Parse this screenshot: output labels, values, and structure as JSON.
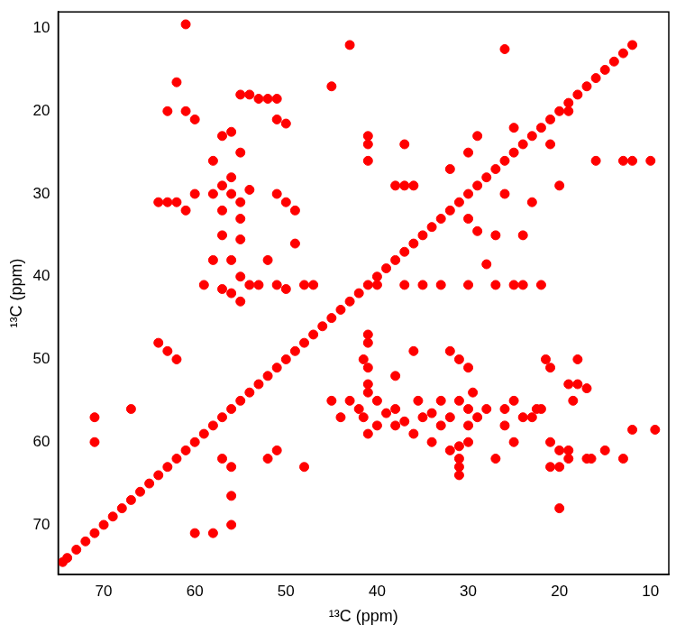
{
  "chart_data": {
    "type": "scatter",
    "x_label": "¹³C (ppm)",
    "y_label": "¹³C (ppm)",
    "xlim": [
      75,
      8
    ],
    "ylim": [
      8,
      76
    ],
    "xticks": [
      70,
      60,
      50,
      40,
      30,
      20,
      10
    ],
    "yticks": [
      10,
      20,
      30,
      40,
      50,
      60,
      70
    ],
    "grid": false,
    "color": "#ff0000",
    "marker": "circle",
    "points": [
      [
        74.5,
        74.5
      ],
      [
        74,
        74
      ],
      [
        73,
        73
      ],
      [
        72,
        72
      ],
      [
        71,
        71
      ],
      [
        70,
        70
      ],
      [
        69,
        69
      ],
      [
        68,
        68
      ],
      [
        67,
        67
      ],
      [
        66,
        66
      ],
      [
        65,
        65
      ],
      [
        64,
        64
      ],
      [
        63,
        63
      ],
      [
        62,
        62
      ],
      [
        61,
        61
      ],
      [
        60,
        60
      ],
      [
        59,
        59
      ],
      [
        58,
        58
      ],
      [
        57,
        57
      ],
      [
        56,
        56
      ],
      [
        55,
        55
      ],
      [
        54,
        54
      ],
      [
        53,
        53
      ],
      [
        52,
        52
      ],
      [
        51,
        51
      ],
      [
        50,
        50
      ],
      [
        49,
        49
      ],
      [
        48,
        48
      ],
      [
        47,
        47
      ],
      [
        46,
        46
      ],
      [
        45,
        45
      ],
      [
        44,
        44
      ],
      [
        43,
        43
      ],
      [
        42,
        42
      ],
      [
        41,
        41
      ],
      [
        40,
        40
      ],
      [
        39,
        39
      ],
      [
        38,
        38
      ],
      [
        37,
        37
      ],
      [
        36,
        36
      ],
      [
        35,
        35
      ],
      [
        34,
        34
      ],
      [
        33,
        33
      ],
      [
        32,
        32
      ],
      [
        31,
        31
      ],
      [
        30,
        30
      ],
      [
        29,
        29
      ],
      [
        28,
        28
      ],
      [
        27,
        27
      ],
      [
        26,
        26
      ],
      [
        25,
        25
      ],
      [
        24,
        24
      ],
      [
        23,
        23
      ],
      [
        22,
        22
      ],
      [
        21,
        21
      ],
      [
        20,
        20
      ],
      [
        19,
        19
      ],
      [
        18,
        18
      ],
      [
        17,
        17
      ],
      [
        16,
        16
      ],
      [
        15,
        15
      ],
      [
        14,
        14
      ],
      [
        13,
        13
      ],
      [
        12,
        12
      ],
      [
        53,
        18.5
      ],
      [
        52,
        18.5
      ],
      [
        54,
        18
      ],
      [
        51,
        18.5
      ],
      [
        55,
        18
      ],
      [
        56,
        30
      ],
      [
        55,
        31
      ],
      [
        57,
        29
      ],
      [
        58,
        30
      ],
      [
        54,
        29.5
      ],
      [
        56,
        28
      ],
      [
        55,
        33
      ],
      [
        57,
        32
      ],
      [
        55,
        35.5
      ],
      [
        57,
        35
      ],
      [
        56,
        38
      ],
      [
        55,
        40
      ],
      [
        54,
        41
      ],
      [
        57,
        41.5
      ],
      [
        53,
        41
      ],
      [
        56,
        42
      ],
      [
        58,
        38
      ],
      [
        59,
        41
      ],
      [
        55,
        43
      ],
      [
        52,
        38
      ],
      [
        48,
        41
      ],
      [
        49,
        36
      ],
      [
        47,
        41
      ],
      [
        51,
        41
      ],
      [
        50,
        41.5
      ],
      [
        62,
        31
      ],
      [
        63,
        31
      ],
      [
        64,
        31
      ],
      [
        60,
        30
      ],
      [
        61,
        32
      ],
      [
        50,
        31
      ],
      [
        49,
        32
      ],
      [
        51,
        30
      ],
      [
        58,
        26
      ],
      [
        57,
        23
      ],
      [
        56,
        22.5
      ],
      [
        55,
        25
      ],
      [
        60,
        21
      ],
      [
        61,
        20
      ],
      [
        63,
        20
      ],
      [
        62,
        16.5
      ],
      [
        51,
        21
      ],
      [
        50,
        21.5
      ],
      [
        63,
        49
      ],
      [
        62,
        50
      ],
      [
        64,
        48
      ],
      [
        60,
        71
      ],
      [
        58,
        71
      ],
      [
        56,
        70
      ],
      [
        56,
        66.5
      ],
      [
        56,
        63
      ],
      [
        57,
        62
      ],
      [
        52,
        62
      ],
      [
        51,
        61
      ],
      [
        48,
        63
      ],
      [
        67,
        56
      ],
      [
        71,
        57
      ],
      [
        71,
        60
      ],
      [
        61,
        9.5
      ],
      [
        45,
        17
      ],
      [
        30,
        56
      ],
      [
        31,
        55
      ],
      [
        29,
        57
      ],
      [
        30,
        58
      ],
      [
        29.5,
        54
      ],
      [
        28,
        56
      ],
      [
        33,
        55
      ],
      [
        32,
        57
      ],
      [
        35.5,
        55
      ],
      [
        35,
        57
      ],
      [
        38,
        56
      ],
      [
        40,
        55
      ],
      [
        41,
        54
      ],
      [
        41.5,
        57
      ],
      [
        41,
        53
      ],
      [
        42,
        56
      ],
      [
        38,
        58
      ],
      [
        41,
        59
      ],
      [
        43,
        55
      ],
      [
        38,
        52
      ],
      [
        41,
        48
      ],
      [
        36,
        49
      ],
      [
        41,
        47
      ],
      [
        41,
        51
      ],
      [
        41.5,
        50
      ],
      [
        31,
        62
      ],
      [
        31,
        63
      ],
      [
        31,
        64
      ],
      [
        30,
        60
      ],
      [
        32,
        61
      ],
      [
        31,
        50
      ],
      [
        32,
        49
      ],
      [
        30,
        51
      ],
      [
        26,
        58
      ],
      [
        23,
        57
      ],
      [
        22.5,
        56
      ],
      [
        25,
        55
      ],
      [
        21,
        60
      ],
      [
        20,
        61
      ],
      [
        20,
        63
      ],
      [
        16.5,
        62
      ],
      [
        21,
        51
      ],
      [
        21.5,
        50
      ],
      [
        18,
        53
      ],
      [
        19,
        53
      ],
      [
        17,
        53.5
      ],
      [
        18.5,
        55
      ],
      [
        18,
        50
      ],
      [
        41,
        26
      ],
      [
        41,
        24
      ],
      [
        37,
        29
      ],
      [
        32,
        27
      ],
      [
        30,
        25
      ],
      [
        26,
        30
      ],
      [
        24,
        41
      ],
      [
        22,
        41
      ],
      [
        25,
        41
      ],
      [
        27,
        41
      ],
      [
        30,
        41
      ],
      [
        33,
        41
      ],
      [
        35,
        41
      ],
      [
        37,
        41
      ],
      [
        40,
        41
      ],
      [
        41,
        23
      ],
      [
        37,
        24
      ],
      [
        36,
        29
      ],
      [
        16,
        26
      ],
      [
        13,
        26
      ],
      [
        10,
        26
      ],
      [
        17,
        62
      ],
      [
        13,
        62
      ],
      [
        19,
        62
      ],
      [
        21,
        63
      ],
      [
        19,
        61
      ],
      [
        15,
        61
      ],
      [
        20,
        68
      ],
      [
        12,
        58.5
      ],
      [
        9.5,
        58.5
      ],
      [
        20,
        29
      ],
      [
        19,
        20
      ],
      [
        21,
        24
      ],
      [
        25,
        22
      ],
      [
        28,
        38.5
      ],
      [
        27,
        35
      ],
      [
        29,
        34.5
      ],
      [
        38,
        29
      ],
      [
        43,
        12
      ],
      [
        26,
        12.5
      ],
      [
        12,
        26
      ],
      [
        23,
        31
      ],
      [
        24,
        35
      ],
      [
        29,
        23
      ],
      [
        30,
        33
      ],
      [
        39,
        56.5
      ],
      [
        37,
        57.5
      ],
      [
        34,
        56.5
      ],
      [
        33,
        58
      ],
      [
        36,
        59
      ],
      [
        40,
        58
      ],
      [
        44,
        57
      ],
      [
        26,
        56
      ],
      [
        24,
        57
      ],
      [
        22,
        56
      ],
      [
        25,
        60
      ],
      [
        27,
        62
      ],
      [
        31,
        60.5
      ],
      [
        34,
        60
      ],
      [
        45,
        55
      ]
    ]
  }
}
